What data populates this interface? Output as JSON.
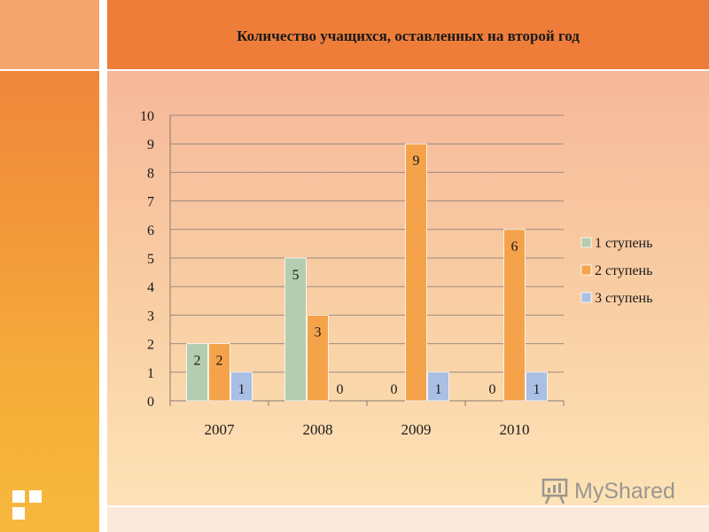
{
  "slide": {
    "title": "Количество учащихся, оставленных на второй год",
    "watermark": "MyShared"
  },
  "chart_data": {
    "type": "bar",
    "categories": [
      "2007",
      "2008",
      "2009",
      "2010"
    ],
    "series": [
      {
        "name": "1 ступень",
        "values": [
          2,
          5,
          0,
          0
        ],
        "color": "#b4cdb0"
      },
      {
        "name": "2 ступень",
        "values": [
          2,
          3,
          9,
          6
        ],
        "color": "#f5a34a"
      },
      {
        "name": "3 ступень",
        "values": [
          1,
          0,
          1,
          1
        ],
        "color": "#a9bfe3"
      }
    ],
    "ylim": [
      0,
      10
    ],
    "yticks": [
      0,
      1,
      2,
      3,
      4,
      5,
      6,
      7,
      8,
      9,
      10
    ],
    "grid": true,
    "legend": "right",
    "data_labels": [
      [
        "2",
        "2",
        "1"
      ],
      [
        "5",
        "3",
        "0"
      ],
      [
        "0",
        "9",
        "1"
      ],
      [
        "0",
        "6",
        "1"
      ]
    ]
  }
}
